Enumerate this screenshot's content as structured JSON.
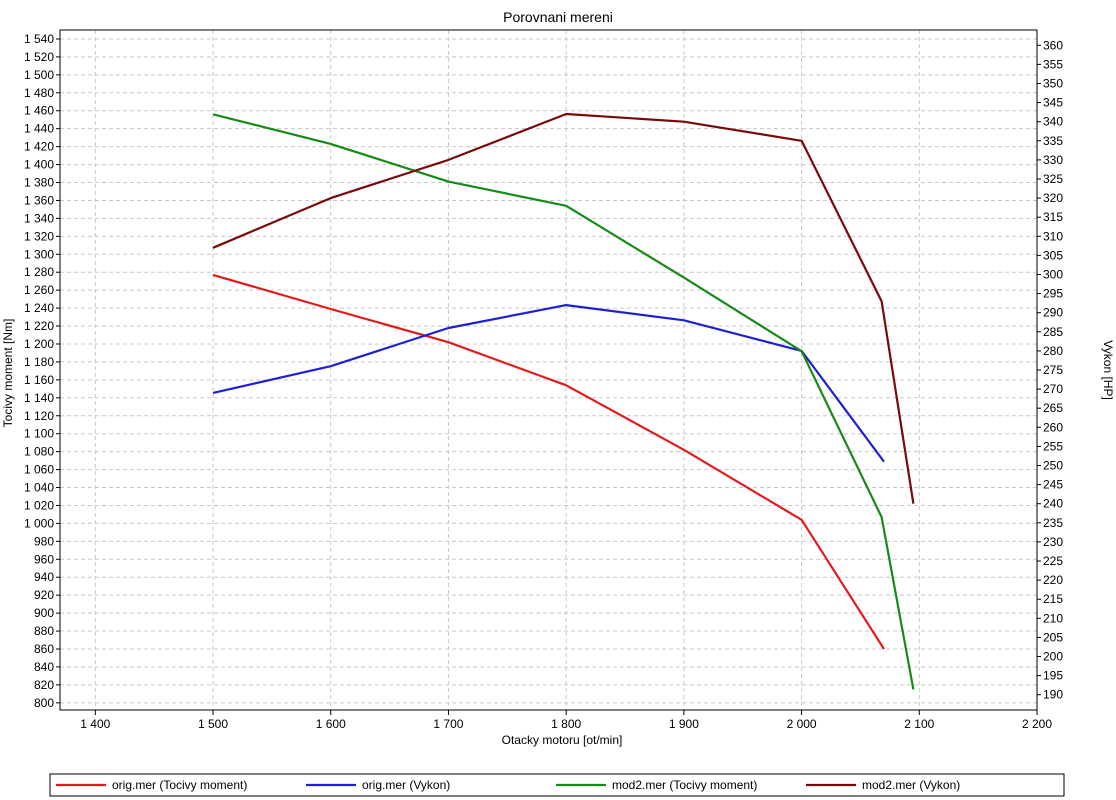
{
  "chart_data": {
    "type": "line",
    "title": "Porovnani mereni",
    "xlabel": "Otacky motoru [ot/min]",
    "ylabel_left": "Tocivy moment [Nm]",
    "ylabel_right": "Vykon [HP]",
    "xlim": [
      1370,
      2200
    ],
    "ylim_left": [
      792,
      1550
    ],
    "ylim_right": [
      186,
      364
    ],
    "x_ticks": [
      1400,
      1500,
      1600,
      1700,
      1800,
      1900,
      2000,
      2100,
      2200
    ],
    "x_tick_labels": [
      "1 400",
      "1 500",
      "1 600",
      "1 700",
      "1 800",
      "1 900",
      "2 000",
      "2 100",
      "2 200"
    ],
    "y_left_ticks": [
      800,
      820,
      840,
      860,
      880,
      900,
      920,
      940,
      960,
      980,
      1000,
      1020,
      1040,
      1060,
      1080,
      1100,
      1120,
      1140,
      1160,
      1180,
      1200,
      1220,
      1240,
      1260,
      1280,
      1300,
      1320,
      1340,
      1360,
      1380,
      1400,
      1420,
      1440,
      1460,
      1480,
      1500,
      1520,
      1540
    ],
    "y_left_tick_labels": [
      "800",
      "820",
      "840",
      "860",
      "880",
      "900",
      "920",
      "940",
      "960",
      "980",
      "1 000",
      "1 020",
      "1 040",
      "1 060",
      "1 080",
      "1 100",
      "1 120",
      "1 140",
      "1 160",
      "1 180",
      "1 200",
      "1 220",
      "1 240",
      "1 260",
      "1 280",
      "1 300",
      "1 320",
      "1 340",
      "1 360",
      "1 380",
      "1 400",
      "1 420",
      "1 440",
      "1 460",
      "1 480",
      "1 500",
      "1 520",
      "1 540"
    ],
    "y_right_ticks": [
      190,
      195,
      200,
      205,
      210,
      215,
      220,
      225,
      230,
      235,
      240,
      245,
      250,
      255,
      260,
      265,
      270,
      275,
      280,
      285,
      290,
      295,
      300,
      305,
      310,
      315,
      320,
      325,
      330,
      335,
      340,
      345,
      350,
      355,
      360
    ],
    "y_right_tick_labels": [
      "190",
      "195",
      "200",
      "205",
      "210",
      "215",
      "220",
      "225",
      "230",
      "235",
      "240",
      "245",
      "250",
      "255",
      "260",
      "265",
      "270",
      "275",
      "280",
      "285",
      "290",
      "295",
      "300",
      "305",
      "310",
      "315",
      "320",
      "325",
      "330",
      "335",
      "340",
      "345",
      "350",
      "355",
      "360"
    ],
    "grid": true,
    "legend_position": "bottom",
    "series": [
      {
        "name": "orig.mer  (Tocivy moment)",
        "axis": "left",
        "color": "#e31a1c",
        "x": [
          1500,
          1600,
          1700,
          1800,
          1900,
          2000,
          2070
        ],
        "y": [
          1277,
          1239,
          1202,
          1154,
          1082,
          1004,
          860
        ]
      },
      {
        "name": "orig.mer  (Vykon)",
        "axis": "right",
        "color": "#1f1fd6",
        "x": [
          1500,
          1600,
          1700,
          1800,
          1900,
          2000,
          2070
        ],
        "y": [
          269,
          276,
          286,
          292,
          288,
          280,
          251
        ]
      },
      {
        "name": "mod2.mer  (Tocivy moment)",
        "axis": "left",
        "color": "#168a16",
        "x": [
          1500,
          1600,
          1700,
          1800,
          1900,
          2000,
          2068,
          2095
        ],
        "y": [
          1456,
          1423,
          1381,
          1354,
          1274,
          1192,
          1007,
          815
        ]
      },
      {
        "name": "mod2.mer  (Vykon)",
        "axis": "right",
        "color": "#7a0a0a",
        "x": [
          1500,
          1600,
          1700,
          1800,
          1900,
          2000,
          2068,
          2095
        ],
        "y": [
          307,
          320,
          330,
          342,
          340,
          335,
          293,
          240
        ]
      }
    ]
  }
}
